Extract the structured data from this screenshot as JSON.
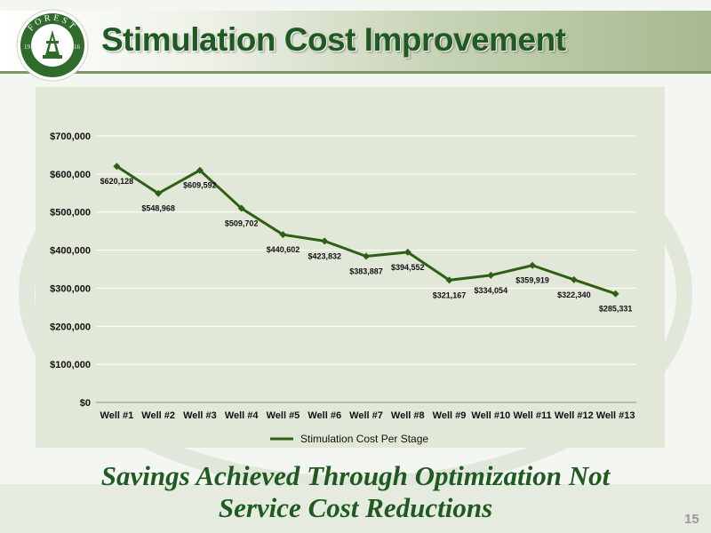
{
  "slide": {
    "title": "Stimulation Cost Improvement",
    "footer_line1": "Savings Achieved Through Optimization Not",
    "footer_line2": "Service Cost Reductions",
    "page_number": "15",
    "logo_text_top": "FOREST",
    "logo_text_bottom": "OIL",
    "logo_year_left": "19",
    "logo_year_right": "16"
  },
  "colors": {
    "brand_green": "#1f5a20",
    "line_green": "#2e5f14",
    "panel_bg": "#e1e8d7"
  },
  "chart_data": {
    "type": "line",
    "categories": [
      "Well #1",
      "Well #2",
      "Well #3",
      "Well #4",
      "Well #5",
      "Well #6",
      "Well #7",
      "Well #8",
      "Well #9",
      "Well #10",
      "Well #11",
      "Well #12",
      "Well #13"
    ],
    "series": [
      {
        "name": "Stimulation Cost Per Stage",
        "values": [
          620128,
          548968,
          609592,
          509702,
          440602,
          423832,
          383887,
          394552,
          321167,
          334054,
          359919,
          322340,
          285331
        ],
        "labels": [
          "$620,128",
          "$548,968",
          "$609,592",
          "$509,702",
          "$440,602",
          "$423,832",
          "$383,887",
          "$394,552",
          "$321,167",
          "$334,054",
          "$359,919",
          "$322,340",
          "$285,331"
        ]
      }
    ],
    "ylim": [
      0,
      700000
    ],
    "yticks": [
      0,
      100000,
      200000,
      300000,
      400000,
      500000,
      600000,
      700000
    ],
    "ytick_labels": [
      "$0",
      "$100,000",
      "$200,000",
      "$300,000",
      "$400,000",
      "$500,000",
      "$600,000",
      "$700,000"
    ],
    "title": "",
    "xlabel": "",
    "ylabel": "",
    "grid": true,
    "legend_position": "bottom",
    "marker": "diamond"
  }
}
